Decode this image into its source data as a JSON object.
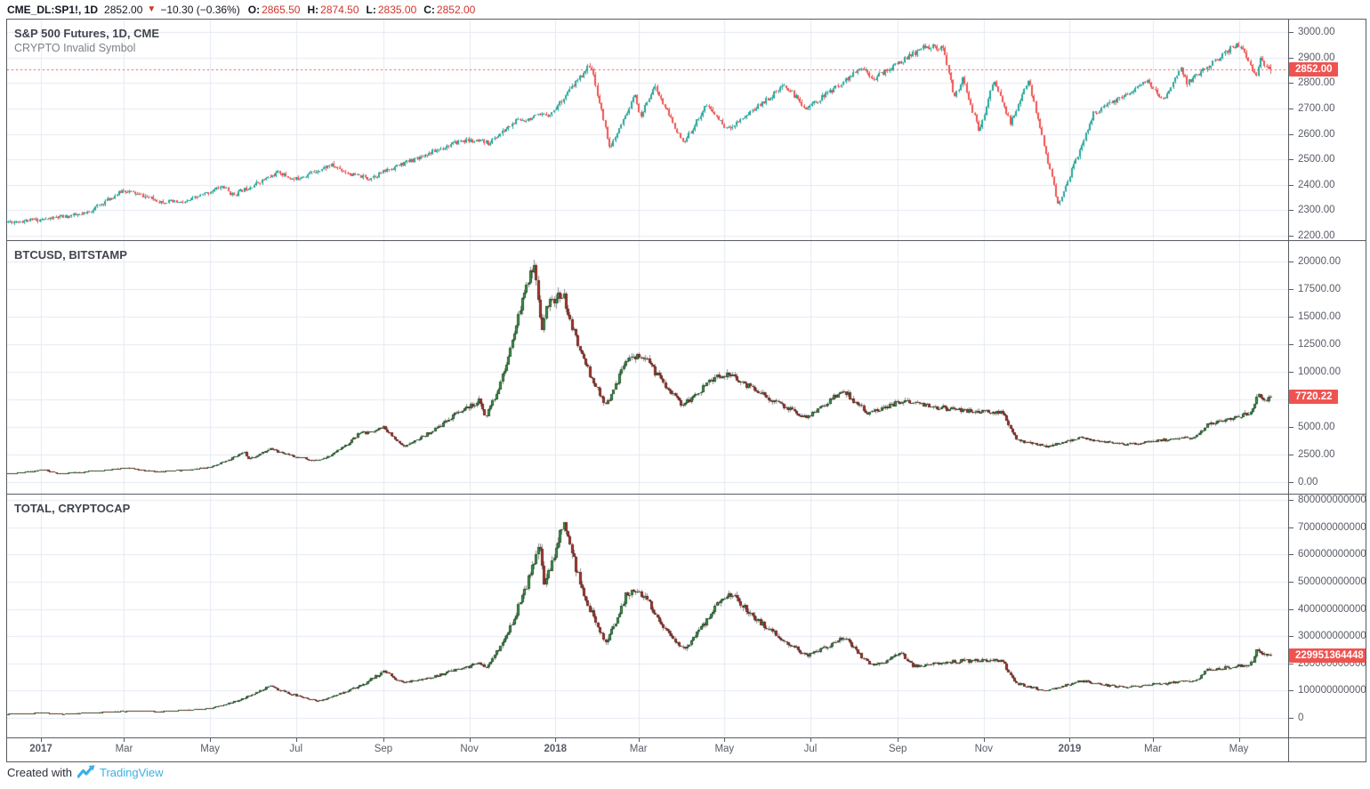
{
  "legend": {
    "symbol": "CME_DL:SP1!, 1D",
    "last": "2852.00",
    "direction_icon": "▼",
    "change": "−10.30 (−0.36%)",
    "o_label": "O:",
    "o_value": "2865.50",
    "h_label": "H:",
    "h_value": "2874.50",
    "l_label": "L:",
    "l_value": "2835.00",
    "c_label": "C:",
    "c_value": "2852.00"
  },
  "footer": {
    "created_with": "Created with",
    "brand": "TradingView"
  },
  "colors": {
    "frame": "#585c64",
    "grid": "#e4e9f2",
    "axis_text": "#585c66",
    "badge_bg": "#ef5350",
    "legend_red": "#d0342c",
    "brand_blue": "#3cb0e6",
    "price_line": "#ef5350"
  },
  "bar_count": 637,
  "time_axis": {
    "start_date": "2016-12-08",
    "end_date": "2019-06-05",
    "labels": [
      {
        "text": "2017",
        "date": "2017-01-01",
        "bold": true
      },
      {
        "text": "Mar",
        "date": "2017-03-01"
      },
      {
        "text": "May",
        "date": "2017-05-01"
      },
      {
        "text": "Jul",
        "date": "2017-07-01"
      },
      {
        "text": "Sep",
        "date": "2017-09-01"
      },
      {
        "text": "Nov",
        "date": "2017-11-01"
      },
      {
        "text": "2018",
        "date": "2018-01-01",
        "bold": true
      },
      {
        "text": "Mar",
        "date": "2018-03-01"
      },
      {
        "text": "May",
        "date": "2018-05-01"
      },
      {
        "text": "Jul",
        "date": "2018-07-01"
      },
      {
        "text": "Sep",
        "date": "2018-09-01"
      },
      {
        "text": "Nov",
        "date": "2018-11-01"
      },
      {
        "text": "2019",
        "date": "2019-01-01",
        "bold": true
      },
      {
        "text": "Mar",
        "date": "2019-03-01"
      },
      {
        "text": "May",
        "date": "2019-05-01"
      }
    ]
  },
  "chart_data": [
    {
      "type": "candlestick",
      "title": "S&P 500 Futures, 1D, CME",
      "subtitle": "CRYPTO Invalid Symbol",
      "interpolation": "linear",
      "seed": 11,
      "volatility": 0.0035,
      "price_line": true,
      "last_price": 2852.0,
      "last_price_label": "2852.00",
      "last_ohlc": [
        2865.5,
        2874.5,
        2835.0,
        2852.0
      ],
      "style": {
        "up_fill": "#26a69a",
        "up_border": "#26a69a",
        "down_fill": "#ef5350",
        "down_border": "#ef5350",
        "wick_up": "#26a69a",
        "wick_down": "#ef5350",
        "body_width": 2
      },
      "y_axis": {
        "value_at_top": 3049,
        "value_at_bottom": 2183,
        "ticks": [
          {
            "v": 3000,
            "label": "3000.00"
          },
          {
            "v": 2900,
            "label": "2900.00"
          },
          {
            "v": 2800,
            "label": "2800.00"
          },
          {
            "v": 2700,
            "label": "2700.00"
          },
          {
            "v": 2600,
            "label": "2600.00"
          },
          {
            "v": 2500,
            "label": "2500.00"
          },
          {
            "v": 2400,
            "label": "2400.00"
          },
          {
            "v": 2300,
            "label": "2300.00"
          },
          {
            "v": 2200,
            "label": "2200.00"
          }
        ]
      },
      "keyframes": [
        [
          "2016-12-08",
          2255
        ],
        [
          "2017-01-03",
          2265
        ],
        [
          "2017-02-01",
          2285
        ],
        [
          "2017-03-01",
          2380
        ],
        [
          "2017-03-27",
          2335
        ],
        [
          "2017-04-13",
          2330
        ],
        [
          "2017-05-10",
          2395
        ],
        [
          "2017-05-17",
          2360
        ],
        [
          "2017-06-19",
          2450
        ],
        [
          "2017-06-29",
          2420
        ],
        [
          "2017-07-26",
          2478
        ],
        [
          "2017-08-10",
          2440
        ],
        [
          "2017-08-21",
          2425
        ],
        [
          "2017-09-22",
          2500
        ],
        [
          "2017-10-27",
          2575
        ],
        [
          "2017-11-15",
          2565
        ],
        [
          "2017-12-04",
          2650
        ],
        [
          "2017-12-29",
          2680
        ],
        [
          "2018-01-26",
          2875
        ],
        [
          "2018-02-09",
          2540
        ],
        [
          "2018-02-27",
          2760
        ],
        [
          "2018-03-02",
          2660
        ],
        [
          "2018-03-12",
          2790
        ],
        [
          "2018-04-02",
          2560
        ],
        [
          "2018-04-18",
          2715
        ],
        [
          "2018-05-03",
          2618
        ],
        [
          "2018-06-13",
          2790
        ],
        [
          "2018-06-28",
          2700
        ],
        [
          "2018-08-07",
          2860
        ],
        [
          "2018-08-15",
          2818
        ],
        [
          "2018-09-21",
          2945
        ],
        [
          "2018-10-03",
          2935
        ],
        [
          "2018-10-11",
          2745
        ],
        [
          "2018-10-17",
          2815
        ],
        [
          "2018-10-29",
          2605
        ],
        [
          "2018-11-08",
          2815
        ],
        [
          "2018-11-20",
          2640
        ],
        [
          "2018-12-03",
          2810
        ],
        [
          "2018-12-24",
          2320
        ],
        [
          "2019-01-18",
          2680
        ],
        [
          "2019-02-25",
          2805
        ],
        [
          "2019-03-08",
          2730
        ],
        [
          "2019-03-21",
          2860
        ],
        [
          "2019-03-25",
          2800
        ],
        [
          "2019-04-30",
          2955
        ],
        [
          "2019-05-06",
          2910
        ],
        [
          "2019-05-13",
          2820
        ],
        [
          "2019-05-16",
          2890
        ],
        [
          "2019-05-23",
          2852
        ]
      ]
    },
    {
      "type": "candlestick",
      "title": "BTCUSD, BITSTAMP",
      "subtitle": "",
      "interpolation": "log",
      "seed": 23,
      "volatility": 0.032,
      "price_line": false,
      "last_price": 7720.22,
      "last_price_label": "7720.22",
      "style": {
        "up_fill": "#459a52",
        "up_border": "#1f5629",
        "down_fill": "#a93b31",
        "down_border": "#6e241d",
        "wick_up": "#8c8c8c",
        "wick_down": "#8c8c8c",
        "body_width": 3
      },
      "y_axis": {
        "value_at_top": 21850,
        "value_at_bottom": -1045,
        "ticks": [
          {
            "v": 20000,
            "label": "20000.00"
          },
          {
            "v": 17500,
            "label": "17500.00"
          },
          {
            "v": 15000,
            "label": "15000.00"
          },
          {
            "v": 12500,
            "label": "12500.00"
          },
          {
            "v": 10000,
            "label": "10000.00"
          },
          {
            "v": 7500,
            "label": "7500.00",
            "hidden": true
          },
          {
            "v": 5000,
            "label": "5000.00"
          },
          {
            "v": 2500,
            "label": "2500.00"
          },
          {
            "v": 0,
            "label": "0.00"
          }
        ]
      },
      "keyframes": [
        [
          "2016-12-08",
          770
        ],
        [
          "2017-01-04",
          1130
        ],
        [
          "2017-01-12",
          790
        ],
        [
          "2017-02-24",
          1190
        ],
        [
          "2017-03-03",
          1280
        ],
        [
          "2017-03-25",
          940
        ],
        [
          "2017-04-30",
          1350
        ],
        [
          "2017-05-25",
          2750
        ],
        [
          "2017-05-28",
          2100
        ],
        [
          "2017-06-12",
          3000
        ],
        [
          "2017-07-16",
          1900
        ],
        [
          "2017-08-14",
          4350
        ],
        [
          "2017-09-01",
          4950
        ],
        [
          "2017-09-15",
          3250
        ],
        [
          "2017-10-21",
          6100
        ],
        [
          "2017-11-08",
          7450
        ],
        [
          "2017-11-12",
          5900
        ],
        [
          "2017-12-08",
          16500
        ],
        [
          "2017-12-17",
          19800
        ],
        [
          "2017-12-22",
          13500
        ],
        [
          "2017-12-26",
          16000
        ],
        [
          "2018-01-06",
          17100
        ],
        [
          "2018-02-06",
          6950
        ],
        [
          "2018-02-20",
          11300
        ],
        [
          "2018-03-05",
          11450
        ],
        [
          "2018-04-01",
          6950
        ],
        [
          "2018-04-25",
          9700
        ],
        [
          "2018-05-05",
          9850
        ],
        [
          "2018-06-28",
          5900
        ],
        [
          "2018-07-24",
          8400
        ],
        [
          "2018-08-11",
          6200
        ],
        [
          "2018-09-04",
          7400
        ],
        [
          "2018-10-15",
          6500
        ],
        [
          "2018-11-14",
          6350
        ],
        [
          "2018-11-25",
          3800
        ],
        [
          "2018-12-15",
          3250
        ],
        [
          "2019-01-08",
          4050
        ],
        [
          "2019-02-08",
          3420
        ],
        [
          "2019-04-01",
          4150
        ],
        [
          "2019-04-08",
          5250
        ],
        [
          "2019-05-10",
          6350
        ],
        [
          "2019-05-14",
          8000
        ],
        [
          "2019-05-17",
          7350
        ],
        [
          "2019-05-23",
          7720.22
        ]
      ]
    },
    {
      "type": "candlestick",
      "title": "TOTAL, CRYPTOCAP",
      "subtitle": "",
      "interpolation": "log",
      "seed": 37,
      "volatility": 0.034,
      "price_line": false,
      "last_price": 229951364448,
      "last_price_label": "229951364448",
      "style": {
        "up_fill": "#459a52",
        "up_border": "#1f5629",
        "down_fill": "#a93b31",
        "down_border": "#6e241d",
        "wick_up": "#8c8c8c",
        "wick_down": "#8c8c8c",
        "body_width": 3
      },
      "y_axis": {
        "value_at_top": 819500000000,
        "value_at_bottom": -71500000000,
        "ticks": [
          {
            "v": 800000000000,
            "label": "800000000000"
          },
          {
            "v": 700000000000,
            "label": "700000000000"
          },
          {
            "v": 600000000000,
            "label": "600000000000"
          },
          {
            "v": 500000000000,
            "label": "500000000000"
          },
          {
            "v": 400000000000,
            "label": "400000000000"
          },
          {
            "v": 300000000000,
            "label": "300000000000"
          },
          {
            "v": 200000000000,
            "label": "200000000000"
          },
          {
            "v": 100000000000,
            "label": "100000000000"
          },
          {
            "v": 0,
            "label": "0"
          }
        ]
      },
      "keyframes": [
        [
          "2016-12-08",
          14500000000
        ],
        [
          "2017-01-04",
          19000000000
        ],
        [
          "2017-01-12",
          15000000000
        ],
        [
          "2017-03-01",
          25000000000
        ],
        [
          "2017-03-25",
          24000000000
        ],
        [
          "2017-04-30",
          35000000000
        ],
        [
          "2017-05-31",
          87000000000
        ],
        [
          "2017-06-12",
          117000000000
        ],
        [
          "2017-07-16",
          62000000000
        ],
        [
          "2017-09-01",
          172000000000
        ],
        [
          "2017-09-15",
          128000000000
        ],
        [
          "2017-11-08",
          200000000000
        ],
        [
          "2017-11-12",
          185000000000
        ],
        [
          "2017-12-12",
          500000000000
        ],
        [
          "2017-12-21",
          640000000000
        ],
        [
          "2017-12-24",
          500000000000
        ],
        [
          "2018-01-07",
          720000000000
        ],
        [
          "2018-02-06",
          275000000000
        ],
        [
          "2018-02-20",
          460000000000
        ],
        [
          "2018-03-05",
          450000000000
        ],
        [
          "2018-04-01",
          250000000000
        ],
        [
          "2018-04-25",
          410000000000
        ],
        [
          "2018-05-05",
          460000000000
        ],
        [
          "2018-06-29",
          230000000000
        ],
        [
          "2018-07-25",
          295000000000
        ],
        [
          "2018-08-14",
          190000000000
        ],
        [
          "2018-09-04",
          235000000000
        ],
        [
          "2018-09-12",
          190000000000
        ],
        [
          "2018-10-15",
          210000000000
        ],
        [
          "2018-11-14",
          210000000000
        ],
        [
          "2018-11-25",
          125000000000
        ],
        [
          "2018-12-15",
          100000000000
        ],
        [
          "2019-01-08",
          135000000000
        ],
        [
          "2019-02-08",
          112000000000
        ],
        [
          "2019-04-01",
          140000000000
        ],
        [
          "2019-04-08",
          175000000000
        ],
        [
          "2019-05-10",
          200000000000
        ],
        [
          "2019-05-14",
          250000000000
        ],
        [
          "2019-05-17",
          235000000000
        ],
        [
          "2019-05-23",
          229951364448
        ]
      ]
    }
  ]
}
